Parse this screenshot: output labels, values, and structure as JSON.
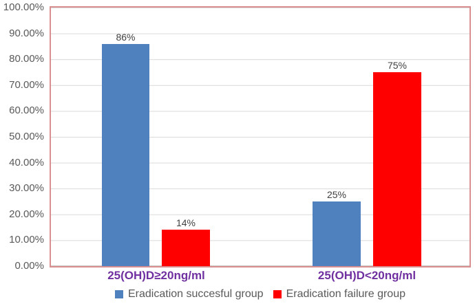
{
  "chart_data": {
    "type": "bar",
    "title": "",
    "categories": [
      "25(OH)D≥20ng/ml",
      "25(OH)D<20ng/ml"
    ],
    "series": [
      {
        "name": "Eradication succesful group",
        "color": "#4E81BD",
        "values": [
          86,
          25
        ],
        "labels": [
          "86%",
          "25%"
        ]
      },
      {
        "name": "Eradication failure group",
        "color": "#FF0000",
        "values": [
          14,
          75
        ],
        "labels": [
          "14%",
          "75%"
        ]
      }
    ],
    "xlabel": "",
    "ylabel": "",
    "ylim": [
      0,
      100
    ],
    "ytick_step": 10,
    "ytick_labels": [
      "100.00%",
      "90.00%",
      "80.00%",
      "70.00%",
      "60.00%",
      "50.00%",
      "40.00%",
      "30.00%",
      "20.00%",
      "10.00%",
      "0.00%"
    ],
    "grid": true,
    "legend_position": "bottom",
    "colors": {
      "bar_blue": "#4E81BD",
      "bar_red": "#FF0000",
      "category_label": "#7030A0",
      "axis_text": "#595959",
      "data_label_text": "#404040",
      "plot_border": "#D98F8F",
      "gridline": "#D9D9D9"
    }
  }
}
